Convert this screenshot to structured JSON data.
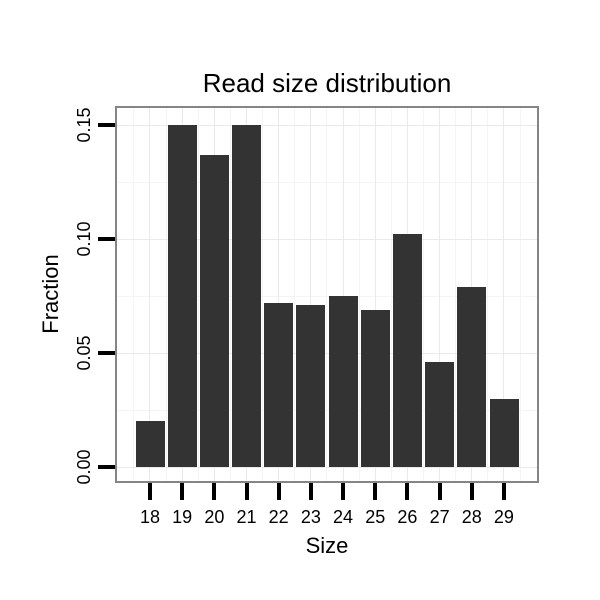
{
  "chart_data": {
    "type": "bar",
    "title": "Read size distribution",
    "xlabel": "Size",
    "ylabel": "Fraction",
    "categories": [
      18,
      19,
      20,
      21,
      22,
      23,
      24,
      25,
      26,
      27,
      28,
      29
    ],
    "values": [
      0.02,
      0.15,
      0.137,
      0.15,
      0.072,
      0.071,
      0.075,
      0.069,
      0.102,
      0.046,
      0.079,
      0.03
    ],
    "x_tick_labels": [
      "18",
      "19",
      "20",
      "21",
      "22",
      "23",
      "24",
      "25",
      "26",
      "27",
      "28",
      "29"
    ],
    "y_ticks": [
      0.0,
      0.05,
      0.1,
      0.15
    ],
    "y_tick_labels": [
      "0.00",
      "0.05",
      "0.10",
      "0.15"
    ],
    "y_minor_gridlines": [
      0.025,
      0.075,
      0.125
    ],
    "x_minor_gridlines": [
      17.5,
      18.5,
      19.5,
      20.5,
      21.5,
      22.5,
      23.5,
      24.5,
      25.5,
      26.5,
      27.5,
      28.5,
      29.5
    ],
    "xlim": [
      16.975,
      30.027
    ],
    "ylim": [
      -0.00614,
      0.15746
    ],
    "bar_width": 0.9,
    "grid": "on",
    "legend": "none",
    "colors": {
      "bar_fill": "#333333",
      "panel_border": "#858585",
      "panel_background": "#ffffff",
      "grid_major": "#eaeaea",
      "grid_minor": "#f4f4f4",
      "tick": "#000000",
      "text": "#000000",
      "page_background": "#ffffff"
    }
  }
}
